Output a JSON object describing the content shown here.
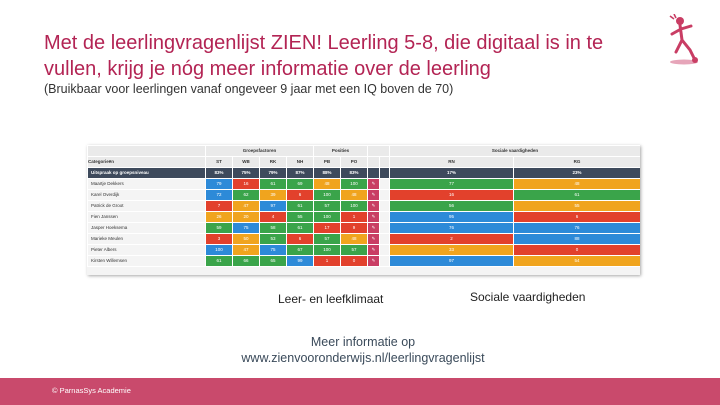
{
  "slide": {
    "title": "Met de leerlingvragenlijst ZIEN! Leerling 5-8, die digitaal is in te vullen, krijg je nóg meer informatie over de leerling",
    "subtitle": "(Bruikbaar voor leerlingen vanaf ongeveer 9 jaar met een IQ boven de 70)",
    "caption_left": "Leer- en leefklimaat",
    "caption_right": "Sociale vaardigheden",
    "more_info_line1": "Meer informatie op",
    "more_info_line2": "www.zienvooronderwijs.nl/leerlingvragenlijst",
    "footer": "© ParnasSys Academie",
    "logo_icon": "running-child-logo-icon"
  },
  "table": {
    "group_headers": [
      "Groepsfactoren",
      "Posities",
      "Sociale vaardigheden"
    ],
    "columns": [
      "Categorieën",
      "ST",
      "WB",
      "RK",
      "NH",
      "PB",
      "PO",
      "",
      "",
      "RN",
      "RG"
    ],
    "meta_row": [
      "Uitspraak op groepsniveau",
      "83%",
      "75%",
      "79%",
      "87%",
      "88%",
      "83%",
      "",
      "",
      "17%",
      "23%"
    ],
    "rows": [
      {
        "name": "Maartje Dekkers",
        "values": [
          "79",
          "16",
          "61",
          "69",
          "48",
          "100",
          "",
          "",
          "77",
          "48"
        ],
        "colors": [
          "b",
          "r",
          "g",
          "g",
          "o",
          "g",
          "",
          "",
          "g",
          "o"
        ]
      },
      {
        "name": "Karel Overdijk",
        "values": [
          "72",
          "62",
          "39",
          "6",
          "100",
          "48",
          "",
          "",
          "16",
          "61"
        ],
        "colors": [
          "b",
          "g",
          "o",
          "r",
          "g",
          "o",
          "",
          "",
          "r",
          "g"
        ]
      },
      {
        "name": "Patrick de Groot",
        "values": [
          "7",
          "47",
          "97",
          "61",
          "57",
          "100",
          "",
          "",
          "56",
          "55"
        ],
        "colors": [
          "r",
          "o",
          "b",
          "g",
          "g",
          "g",
          "",
          "",
          "g",
          "o"
        ]
      },
      {
        "name": "Fien Janssen",
        "values": [
          "26",
          "20",
          "4",
          "55",
          "100",
          "1",
          "",
          "",
          "95",
          "6"
        ],
        "colors": [
          "o",
          "o",
          "r",
          "g",
          "g",
          "r",
          "",
          "",
          "b",
          "r"
        ]
      },
      {
        "name": "Jasper Hoeksema",
        "values": [
          "59",
          "75",
          "58",
          "61",
          "17",
          "9",
          "",
          "",
          "76",
          "76"
        ],
        "colors": [
          "g",
          "b",
          "g",
          "g",
          "r",
          "r",
          "",
          "",
          "b",
          "b"
        ]
      },
      {
        "name": "Marieke Meulen",
        "values": [
          "3",
          "50",
          "53",
          "6",
          "57",
          "48",
          "",
          "",
          "2",
          "88"
        ],
        "colors": [
          "r",
          "o",
          "g",
          "r",
          "g",
          "o",
          "",
          "",
          "r",
          "b"
        ]
      },
      {
        "name": "Pieter Albers",
        "values": [
          "100",
          "47",
          "75",
          "67",
          "100",
          "57",
          "",
          "",
          "33",
          "0"
        ],
        "colors": [
          "b",
          "o",
          "b",
          "g",
          "g",
          "g",
          "",
          "",
          "o",
          "r"
        ]
      },
      {
        "name": "Kirsten Willemsen",
        "values": [
          "61",
          "66",
          "65",
          "99",
          "1",
          "0",
          "",
          "",
          "97",
          "54"
        ],
        "colors": [
          "g",
          "g",
          "g",
          "b",
          "r",
          "r",
          "",
          "",
          "b",
          "o"
        ]
      }
    ],
    "palette": {
      "b": "#2d8ad8",
      "g": "#3aa44a",
      "o": "#f0a41e",
      "r": "#e2412c"
    },
    "edit_icon": "pencil-icon"
  }
}
